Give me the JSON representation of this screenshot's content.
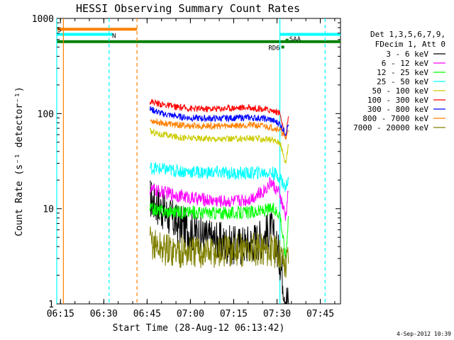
{
  "chart_data": {
    "type": "line",
    "title": "HESSI Observing Summary Count Rates",
    "xlabel": "Start Time (28-Aug-12 06:13:42)",
    "ylabel": "Count Rate (s⁻¹ detector⁻¹)",
    "y_scale": "log",
    "ylim": [
      1,
      1000
    ],
    "xlim": [
      "06:13:42",
      "07:52:00"
    ],
    "x_ticks": [
      "06:15",
      "06:30",
      "06:45",
      "07:00",
      "07:15",
      "07:30",
      "07:45"
    ],
    "y_ticks": [
      "1",
      "10",
      "100",
      "1000"
    ],
    "legend_position": "right",
    "legend_header": [
      "Det 1,3,5,6,7,9,",
      "FDecim 1, Att 0"
    ],
    "footer_date": "4-Sep-2012 10:39",
    "series": [
      {
        "name": "3 - 6 keV",
        "color": "#000000",
        "x": [
          "06:46",
          "06:50",
          "06:55",
          "07:00",
          "07:05",
          "07:10",
          "07:15",
          "07:20",
          "07:25",
          "07:28",
          "07:31",
          "07:33",
          "07:34"
        ],
        "y": [
          13,
          10,
          7,
          6,
          5,
          4.5,
          4,
          4.3,
          5,
          6,
          3,
          1.2,
          1
        ]
      },
      {
        "name": "6 - 12 keV",
        "color": "#ff00ff",
        "x": [
          "06:46",
          "06:50",
          "06:55",
          "07:00",
          "07:05",
          "07:10",
          "07:15",
          "07:20",
          "07:25",
          "07:28",
          "07:31",
          "07:33",
          "07:34"
        ],
        "y": [
          16,
          15,
          14,
          13,
          12.5,
          12,
          12,
          12.5,
          15,
          19,
          14,
          8,
          16
        ]
      },
      {
        "name": "12 - 25 keV",
        "color": "#00ff00",
        "x": [
          "06:46",
          "06:50",
          "06:55",
          "07:00",
          "07:05",
          "07:10",
          "07:15",
          "07:20",
          "07:25",
          "07:28",
          "07:31",
          "07:33",
          "07:34"
        ],
        "y": [
          10,
          9.5,
          9.3,
          9.2,
          9.1,
          9.0,
          9.0,
          9.1,
          9.5,
          10,
          9,
          3,
          9
        ]
      },
      {
        "name": "25 - 50 keV",
        "color": "#00ffff",
        "x": [
          "06:46",
          "06:50",
          "06:55",
          "07:00",
          "07:05",
          "07:10",
          "07:15",
          "07:20",
          "07:25",
          "07:28",
          "07:31",
          "07:33",
          "07:34"
        ],
        "y": [
          27,
          26,
          25,
          24.5,
          24,
          24,
          23.5,
          23.5,
          24,
          24,
          22,
          16,
          22
        ]
      },
      {
        "name": "50 - 100 keV",
        "color": "#cccc00",
        "x": [
          "06:46",
          "06:50",
          "06:55",
          "07:00",
          "07:05",
          "07:10",
          "07:15",
          "07:20",
          "07:25",
          "07:28",
          "07:31",
          "07:33",
          "07:34"
        ],
        "y": [
          65,
          60,
          57,
          55,
          55,
          54,
          54,
          55,
          54,
          53,
          50,
          30,
          50
        ]
      },
      {
        "name": "100 - 300 keV",
        "color": "#ff0000",
        "x": [
          "06:46",
          "06:50",
          "06:55",
          "07:00",
          "07:05",
          "07:10",
          "07:15",
          "07:20",
          "07:25",
          "07:28",
          "07:31",
          "07:33",
          "07:34"
        ],
        "y": [
          135,
          125,
          117,
          113,
          112,
          113,
          115,
          116,
          112,
          108,
          102,
          50,
          98
        ]
      },
      {
        "name": "300 - 800 keV",
        "color": "#0000ff",
        "x": [
          "06:46",
          "06:50",
          "06:55",
          "07:00",
          "07:05",
          "07:10",
          "07:15",
          "07:20",
          "07:25",
          "07:28",
          "07:31",
          "07:33",
          "07:34"
        ],
        "y": [
          112,
          100,
          94,
          90,
          89,
          89,
          90,
          91,
          89,
          86,
          78,
          62,
          78
        ]
      },
      {
        "name": "800 - 7000 keV",
        "color": "#ff8000",
        "x": [
          "06:46",
          "06:50",
          "06:55",
          "07:00",
          "07:05",
          "07:10",
          "07:15",
          "07:20",
          "07:25",
          "07:28",
          "07:31",
          "07:33",
          "07:34"
        ],
        "y": [
          85,
          80,
          76,
          74,
          74,
          74,
          75,
          76,
          74,
          72,
          68,
          55,
          68
        ]
      },
      {
        "name": "7000 - 20000 keV",
        "color": "#808000",
        "x": [
          "06:46",
          "06:50",
          "06:55",
          "07:00",
          "07:05",
          "07:10",
          "07:15",
          "07:20",
          "07:25",
          "07:28",
          "07:31",
          "07:33",
          "07:34"
        ],
        "y": [
          4.5,
          3.8,
          3.6,
          3.5,
          3.5,
          3.5,
          3.6,
          3.7,
          3.8,
          3.6,
          3.5,
          2.5,
          3.5
        ]
      }
    ],
    "flag_bars": [
      {
        "label": "S",
        "color": "#ff8000",
        "start": "06:13:42",
        "end": "06:41:30",
        "y": 770
      },
      {
        "label": "N",
        "color": "#00ffff",
        "start": "06:13:42",
        "end": "06:33:00",
        "y": 680
      },
      {
        "label": "",
        "color": "#00ffff",
        "start": "07:31:00",
        "end": "07:52:00",
        "y": 680
      },
      {
        "label": "",
        "color": "#008000",
        "start": "06:13:42",
        "end": "07:52:00",
        "y": 570
      },
      {
        "label": "SAA",
        "color": "#008000",
        "start": "07:33:00",
        "end": "07:34:00",
        "y": 590
      },
      {
        "label": "RD6",
        "color": "#008000",
        "start": "07:31:30",
        "end": "07:32:30",
        "y": 500
      }
    ],
    "vertical_lines": [
      {
        "time": "06:13:42",
        "color": "#00ffff",
        "style": "solid"
      },
      {
        "time": "06:16:00",
        "color": "#ff8000",
        "style": "solid"
      },
      {
        "time": "06:31:50",
        "color": "#00ffff",
        "style": "dashed"
      },
      {
        "time": "06:41:30",
        "color": "#ff8000",
        "style": "dashed"
      },
      {
        "time": "07:31:00",
        "color": "#00ffff",
        "style": "solid"
      },
      {
        "time": "07:46:40",
        "color": "#00ffff",
        "style": "dashed"
      }
    ]
  }
}
